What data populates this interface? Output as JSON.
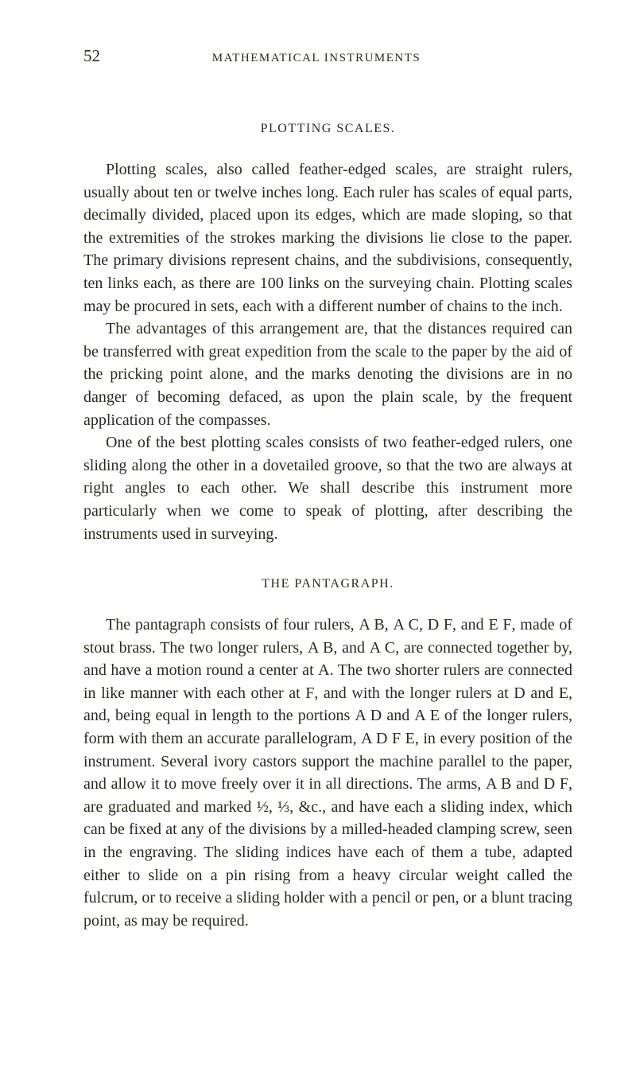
{
  "header": {
    "page_number": "52",
    "running_title": "MATHEMATICAL INSTRUMENTS"
  },
  "section1": {
    "title": "PLOTTING SCALES.",
    "p1": "Plotting scales, also called feather-edged scales, are straight rulers, usually about ten or twelve inches long. Each ruler has scales of equal parts, decimally divided, placed upon its edges, which are made sloping, so that the extremities of the strokes marking the divisions lie close to the paper. The primary divisions represent chains, and the subdivisions, consequently, ten links each, as there are 100 links on the surveying chain. Plotting scales may be procured in sets, each with a different number of chains to the inch.",
    "p2": "The advantages of this arrangement are, that the distances required can be transferred with great expedition from the scale to the paper by the aid of the pricking point alone, and the marks denoting the divisions are in no danger of becoming defaced, as upon the plain scale, by the frequent application of the compasses.",
    "p3": "One of the best plotting scales consists of two feather-edged rulers, one sliding along the other in a dovetailed groove, so that the two are always at right angles to each other. We shall describe this instrument more particularly when we come to speak of plotting, after describing the instruments used in surveying."
  },
  "section2": {
    "title": "THE PANTAGRAPH.",
    "p1_a": "The pantagraph consists of four rulers, ",
    "p1_ab": "A B",
    "p1_b": ", ",
    "p1_ac": "A C",
    "p1_c": ", ",
    "p1_df": "D F",
    "p1_d": ", and ",
    "p1_ef": "E F",
    "p1_e": ", made of stout brass. The two longer rulers, ",
    "p1_ab2": "A B",
    "p1_f": ", and ",
    "p1_ac2": "A C",
    "p1_g": ", are connected together by, and have a motion round a center at ",
    "p1_a2": "A",
    "p1_h": ". The two shorter rulers are connected in like manner with each other at ",
    "p1_f2": "F",
    "p1_i": ", and with the longer rulers at ",
    "p1_d2": "D",
    "p1_j": " and ",
    "p1_e2": "E",
    "p1_k": ", and, being equal in length to the portions ",
    "p1_ad": "A D",
    "p1_l": " and ",
    "p1_ae": "A E",
    "p1_m": " of the longer rulers, form with them an accurate parallelogram, ",
    "p1_adfe": "A D F E",
    "p1_n": ", in every position of the instrument. Several ivory castors support the machine parallel to the paper, and allow it to move freely over it in all directions. The arms, ",
    "p1_ab3": "A B",
    "p1_o": " and ",
    "p1_df2": "D F",
    "p1_p": ", are graduated and marked ½, ⅓, &c., and have each a sliding index, which can be fixed at any of the divisions by a milled-headed clamping screw, seen in the engraving. The sliding indices have each of them a tube, adapted either to slide on a pin rising from a heavy circular weight called the fulcrum, or to receive a sliding holder with a pencil or pen, or a blunt tracing point, as may be required."
  },
  "colors": {
    "text": "#2a2a1f",
    "background": "#ffffff"
  },
  "typography": {
    "body_fontsize": 20,
    "title_fontsize": 16,
    "header_fontsize": 15,
    "pagenum_fontsize": 21,
    "line_height": 1.43
  }
}
